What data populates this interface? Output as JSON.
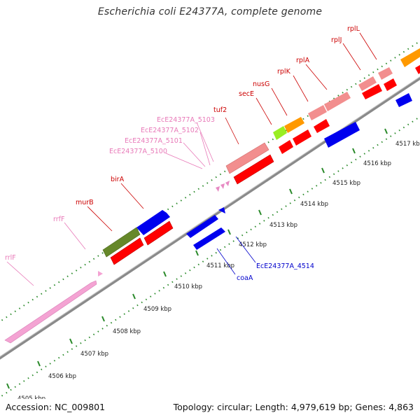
{
  "title": "Escherichia coli E24377A, complete genome",
  "footer": {
    "accession": "Accession: NC_009801",
    "summary": "Topology: circular; Length: 4,979,619 bp; Genes: 4,863"
  },
  "colors": {
    "rrna_pink": "#f4a3d3",
    "trna_pink": "#e78ac3",
    "red": "#ff0000",
    "salmon": "#f28e8e",
    "blue": "#0000ee",
    "olive": "#66882a",
    "orange": "#ff9900",
    "lime": "#99ee22",
    "axis_gray": "#8a8a8a",
    "dots_green": "#2a8a2a",
    "label_red": "#cc0000",
    "label_pink": "#e879b8",
    "label_blue": "#0000cc"
  },
  "kbp_ticks": [
    {
      "label": "4505 kbp"
    },
    {
      "label": "4506 kbp"
    },
    {
      "label": "4507 kbp"
    },
    {
      "label": "4508 kbp"
    },
    {
      "label": "4509 kbp"
    },
    {
      "label": "4510 kbp"
    },
    {
      "label": "4511 kbp"
    },
    {
      "label": "4512 kbp"
    },
    {
      "label": "4513 kbp"
    },
    {
      "label": "4514 kbp"
    },
    {
      "label": "4515 kbp"
    },
    {
      "label": "4516 kbp"
    },
    {
      "label": "4517 kbp"
    }
  ],
  "gene_labels": [
    {
      "text": "rrlF",
      "color": "pink"
    },
    {
      "text": "rrfF",
      "color": "pink"
    },
    {
      "text": "murB",
      "color": "red"
    },
    {
      "text": "birA",
      "color": "red"
    },
    {
      "text": "EcE24377A_5100",
      "color": "pink"
    },
    {
      "text": "EcE24377A_5101",
      "color": "pink"
    },
    {
      "text": "EcE24377A_5102",
      "color": "pink"
    },
    {
      "text": "EcE24377A_5103",
      "color": "pink"
    },
    {
      "text": "tuf2",
      "color": "red"
    },
    {
      "text": "secE",
      "color": "red"
    },
    {
      "text": "nusG",
      "color": "red"
    },
    {
      "text": "rplK",
      "color": "red"
    },
    {
      "text": "rplA",
      "color": "red"
    },
    {
      "text": "rplJ",
      "color": "red"
    },
    {
      "text": "rplL",
      "color": "red"
    },
    {
      "text": "coaA",
      "color": "blue"
    },
    {
      "text": "EcE24377A_4514",
      "color": "blue"
    }
  ]
}
